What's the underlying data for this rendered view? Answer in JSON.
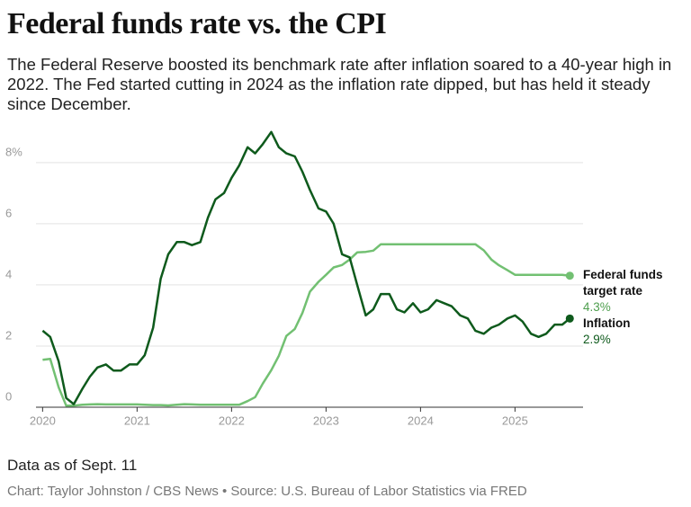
{
  "chart_data": {
    "type": "line",
    "title": "Federal funds rate vs. the CPI",
    "subtitle": "The Federal Reserve boosted its benchmark rate after inflation soared to a 40-year high in 2022. The Fed started cutting in 2024 as the inflation rate dipped, but has held it steady since December.",
    "note": "Data as of Sept. 11",
    "source": "Chart: Taylor Johnston / CBS News • Source: U.S. Bureau of Labor Statistics via FRED",
    "x": [
      2020,
      2020.08,
      2020.17,
      2020.25,
      2020.33,
      2020.42,
      2020.5,
      2020.58,
      2020.67,
      2020.75,
      2020.83,
      2020.92,
      2021,
      2021.08,
      2021.17,
      2021.25,
      2021.33,
      2021.42,
      2021.5,
      2021.58,
      2021.67,
      2021.75,
      2021.83,
      2021.92,
      2022,
      2022.08,
      2022.17,
      2022.25,
      2022.33,
      2022.42,
      2022.5,
      2022.58,
      2022.67,
      2022.75,
      2022.83,
      2022.92,
      2023,
      2023.08,
      2023.17,
      2023.25,
      2023.33,
      2023.42,
      2023.5,
      2023.58,
      2023.67,
      2023.75,
      2023.83,
      2023.92,
      2024,
      2024.08,
      2024.17,
      2024.25,
      2024.33,
      2024.42,
      2024.5,
      2024.58,
      2024.67,
      2024.75,
      2024.83,
      2024.92,
      2025,
      2025.08,
      2025.17,
      2025.25,
      2025.33,
      2025.42,
      2025.5,
      2025.58
    ],
    "series": [
      {
        "name": "Federal funds target rate",
        "color": "#72c072",
        "label_color": "#4f9f4f",
        "values": [
          1.55,
          1.58,
          0.65,
          0.05,
          0.05,
          0.08,
          0.09,
          0.1,
          0.09,
          0.09,
          0.09,
          0.09,
          0.09,
          0.08,
          0.07,
          0.07,
          0.06,
          0.08,
          0.1,
          0.09,
          0.08,
          0.08,
          0.08,
          0.08,
          0.08,
          0.08,
          0.2,
          0.33,
          0.77,
          1.21,
          1.68,
          2.33,
          2.56,
          3.08,
          3.78,
          4.1,
          4.33,
          4.57,
          4.65,
          4.83,
          5.06,
          5.08,
          5.12,
          5.33,
          5.33,
          5.33,
          5.33,
          5.33,
          5.33,
          5.33,
          5.33,
          5.33,
          5.33,
          5.33,
          5.33,
          5.33,
          5.13,
          4.83,
          4.64,
          4.48,
          4.33,
          4.33,
          4.33,
          4.33,
          4.33,
          4.33,
          4.33,
          4.3
        ],
        "value_labels": [
          null,
          null,
          null,
          null,
          null,
          null,
          null,
          null,
          null,
          null,
          null,
          null,
          null,
          null,
          null,
          null,
          null,
          null,
          null,
          null,
          null,
          null,
          null,
          null,
          null,
          null,
          null,
          null,
          null,
          null,
          null,
          null,
          null,
          null,
          null,
          null,
          null,
          null,
          null,
          null,
          null,
          null,
          null,
          null,
          null,
          null,
          null,
          null,
          null,
          null,
          null,
          null,
          null,
          null,
          null,
          null,
          null,
          null,
          null,
          null,
          null,
          null,
          null,
          null,
          null,
          null,
          null,
          "4.3%"
        ]
      },
      {
        "name": "Inflation",
        "color": "#0e5a1c",
        "label_color": "#0e5a1c",
        "values": [
          2.5,
          2.3,
          1.5,
          0.3,
          0.1,
          0.6,
          1.0,
          1.3,
          1.4,
          1.2,
          1.2,
          1.4,
          1.4,
          1.7,
          2.6,
          4.2,
          5.0,
          5.4,
          5.4,
          5.3,
          5.4,
          6.2,
          6.8,
          7.0,
          7.5,
          7.9,
          8.5,
          8.3,
          8.6,
          9.0,
          8.5,
          8.3,
          8.2,
          7.7,
          7.1,
          6.5,
          6.4,
          6.0,
          5.0,
          4.9,
          4.0,
          3.0,
          3.2,
          3.7,
          3.7,
          3.2,
          3.1,
          3.4,
          3.1,
          3.2,
          3.5,
          3.4,
          3.3,
          3.0,
          2.9,
          2.5,
          2.4,
          2.6,
          2.7,
          2.9,
          3.0,
          2.8,
          2.4,
          2.3,
          2.4,
          2.7,
          2.7,
          2.9
        ],
        "value_labels": [
          null,
          null,
          null,
          null,
          null,
          null,
          null,
          null,
          null,
          null,
          null,
          null,
          null,
          null,
          null,
          null,
          null,
          null,
          null,
          null,
          null,
          null,
          null,
          null,
          null,
          null,
          null,
          null,
          null,
          null,
          null,
          null,
          null,
          null,
          null,
          null,
          null,
          null,
          null,
          null,
          null,
          null,
          null,
          null,
          null,
          null,
          null,
          null,
          null,
          null,
          null,
          null,
          null,
          null,
          null,
          null,
          null,
          null,
          null,
          null,
          null,
          null,
          null,
          null,
          null,
          null,
          null,
          "2.9%"
        ]
      }
    ],
    "xlim": [
      2019.93,
      2025.72
    ],
    "xticks": [
      2020,
      2021,
      2022,
      2023,
      2024,
      2025
    ],
    "ylim": [
      0,
      9.2
    ],
    "yticks": [
      0,
      2,
      4,
      6,
      {
        "value": 8,
        "label": "8%"
      }
    ],
    "grid": true
  }
}
